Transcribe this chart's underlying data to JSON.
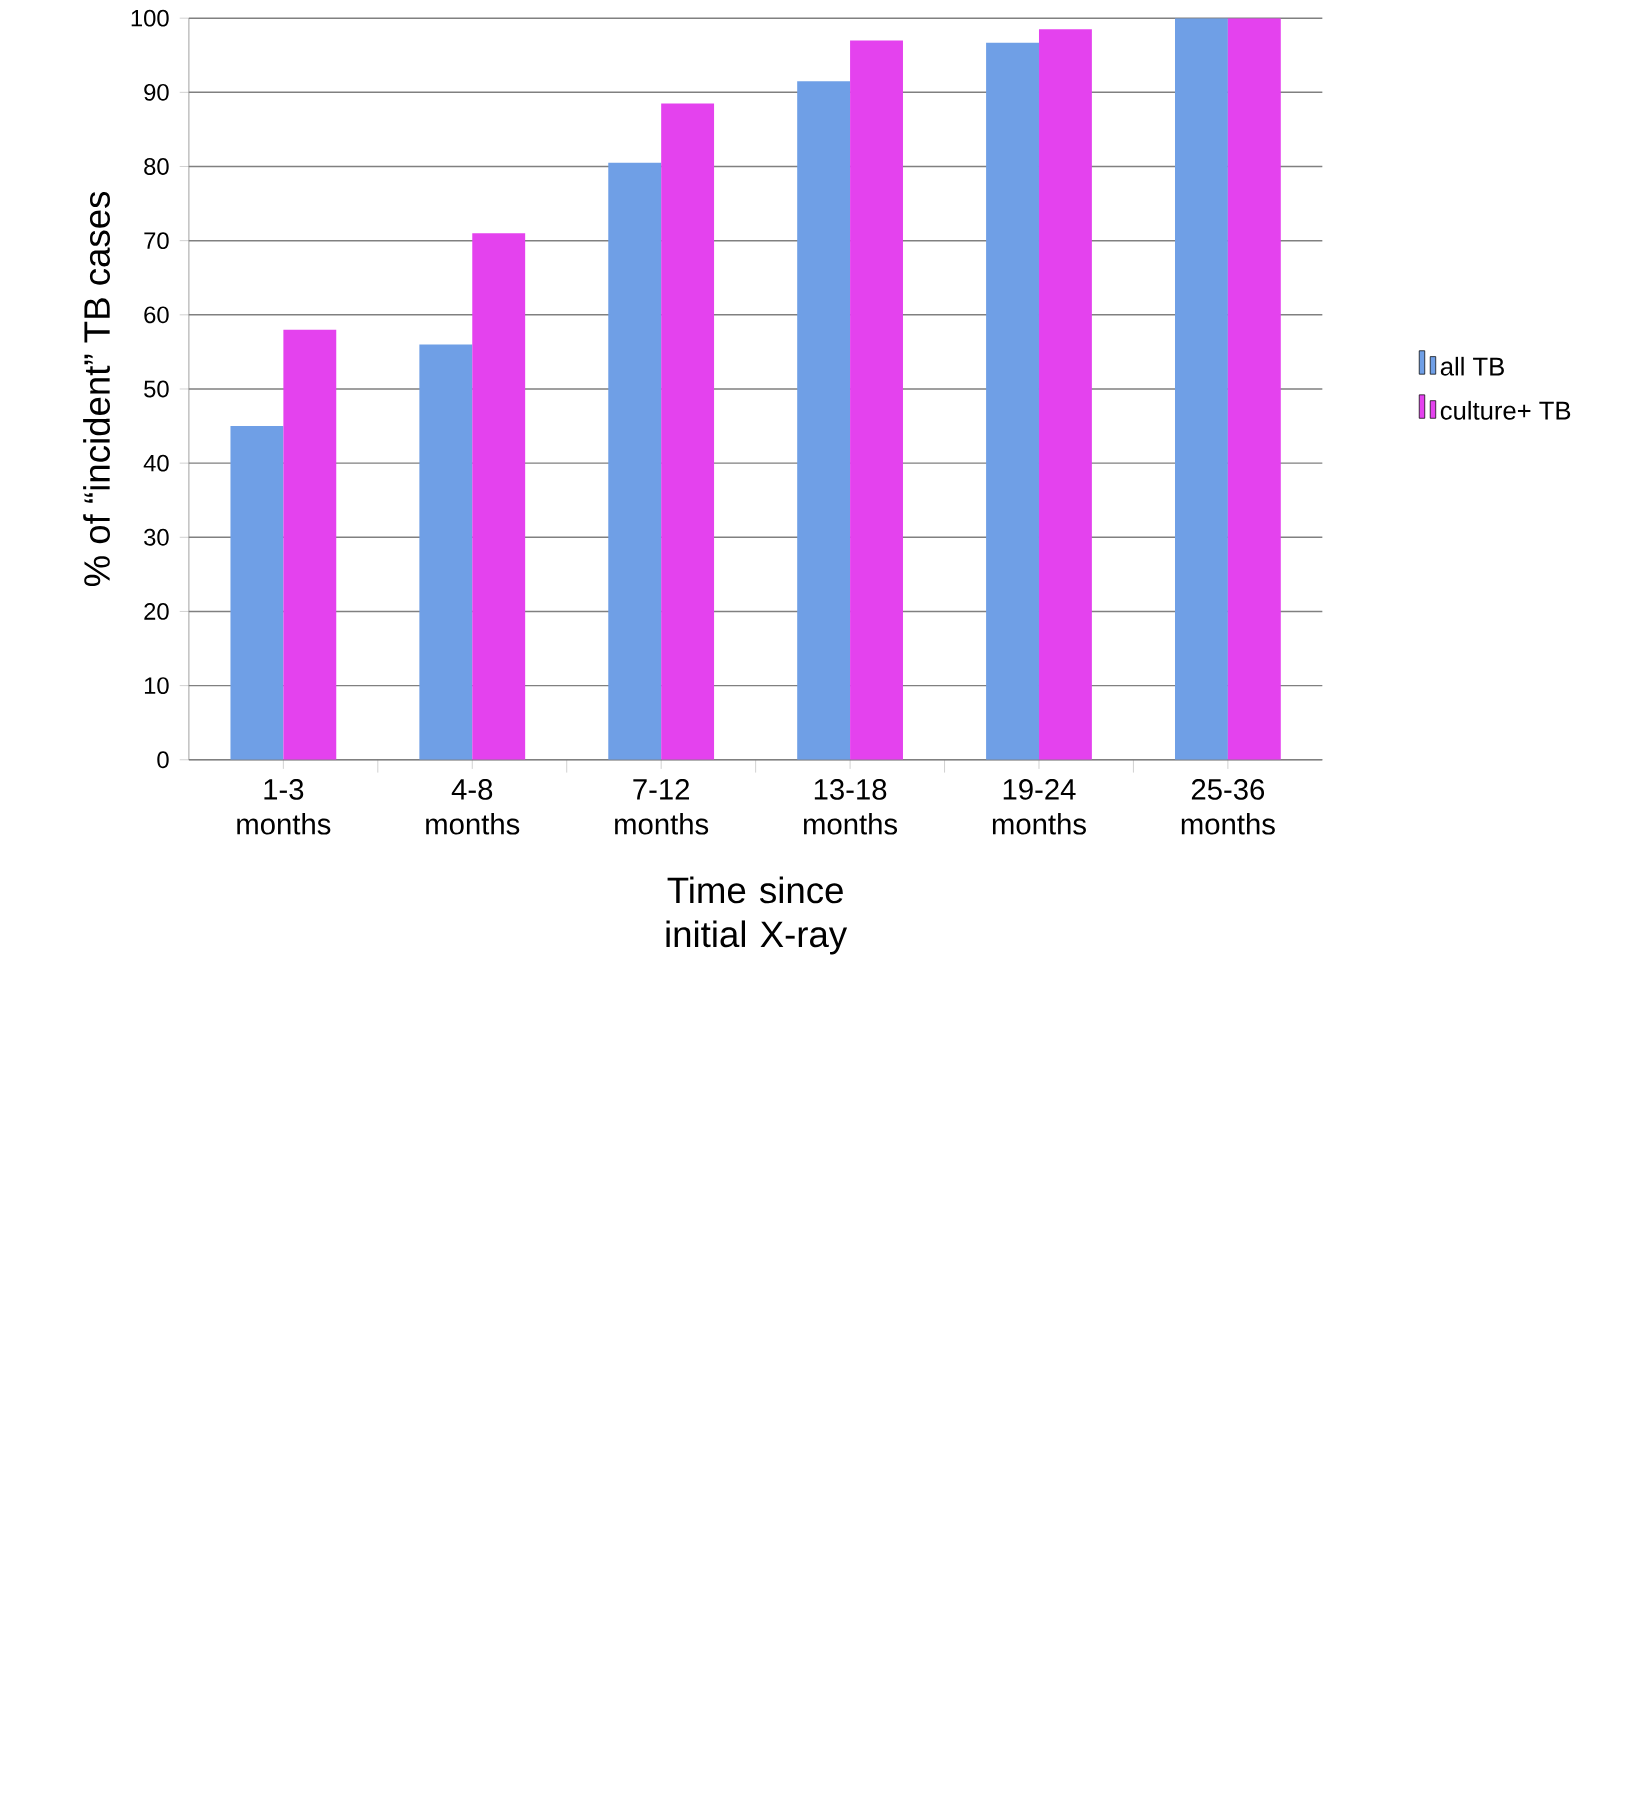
{
  "chart_data": {
    "type": "bar",
    "xlabel": "Time since initial X-ray",
    "ylabel": "% of “incident” TB cases",
    "categories": [
      "1-3 months",
      "4-8 months",
      "7-12 months",
      "13-18 months",
      "19-24 months",
      "25-36 months"
    ],
    "series": [
      {
        "name": "all TB",
        "color": "#6f9fe6",
        "values": [
          45,
          56,
          80.5,
          91.5,
          96.7,
          100
        ]
      },
      {
        "name": "culture+ TB",
        "color": "#e442ee",
        "values": [
          58,
          71,
          88.5,
          97,
          98.5,
          100
        ]
      }
    ],
    "ylim": [
      0,
      100
    ],
    "yticks": [
      0,
      10,
      20,
      30,
      40,
      50,
      60,
      70,
      80,
      90,
      100
    ],
    "grid": "y",
    "legend": "right"
  }
}
